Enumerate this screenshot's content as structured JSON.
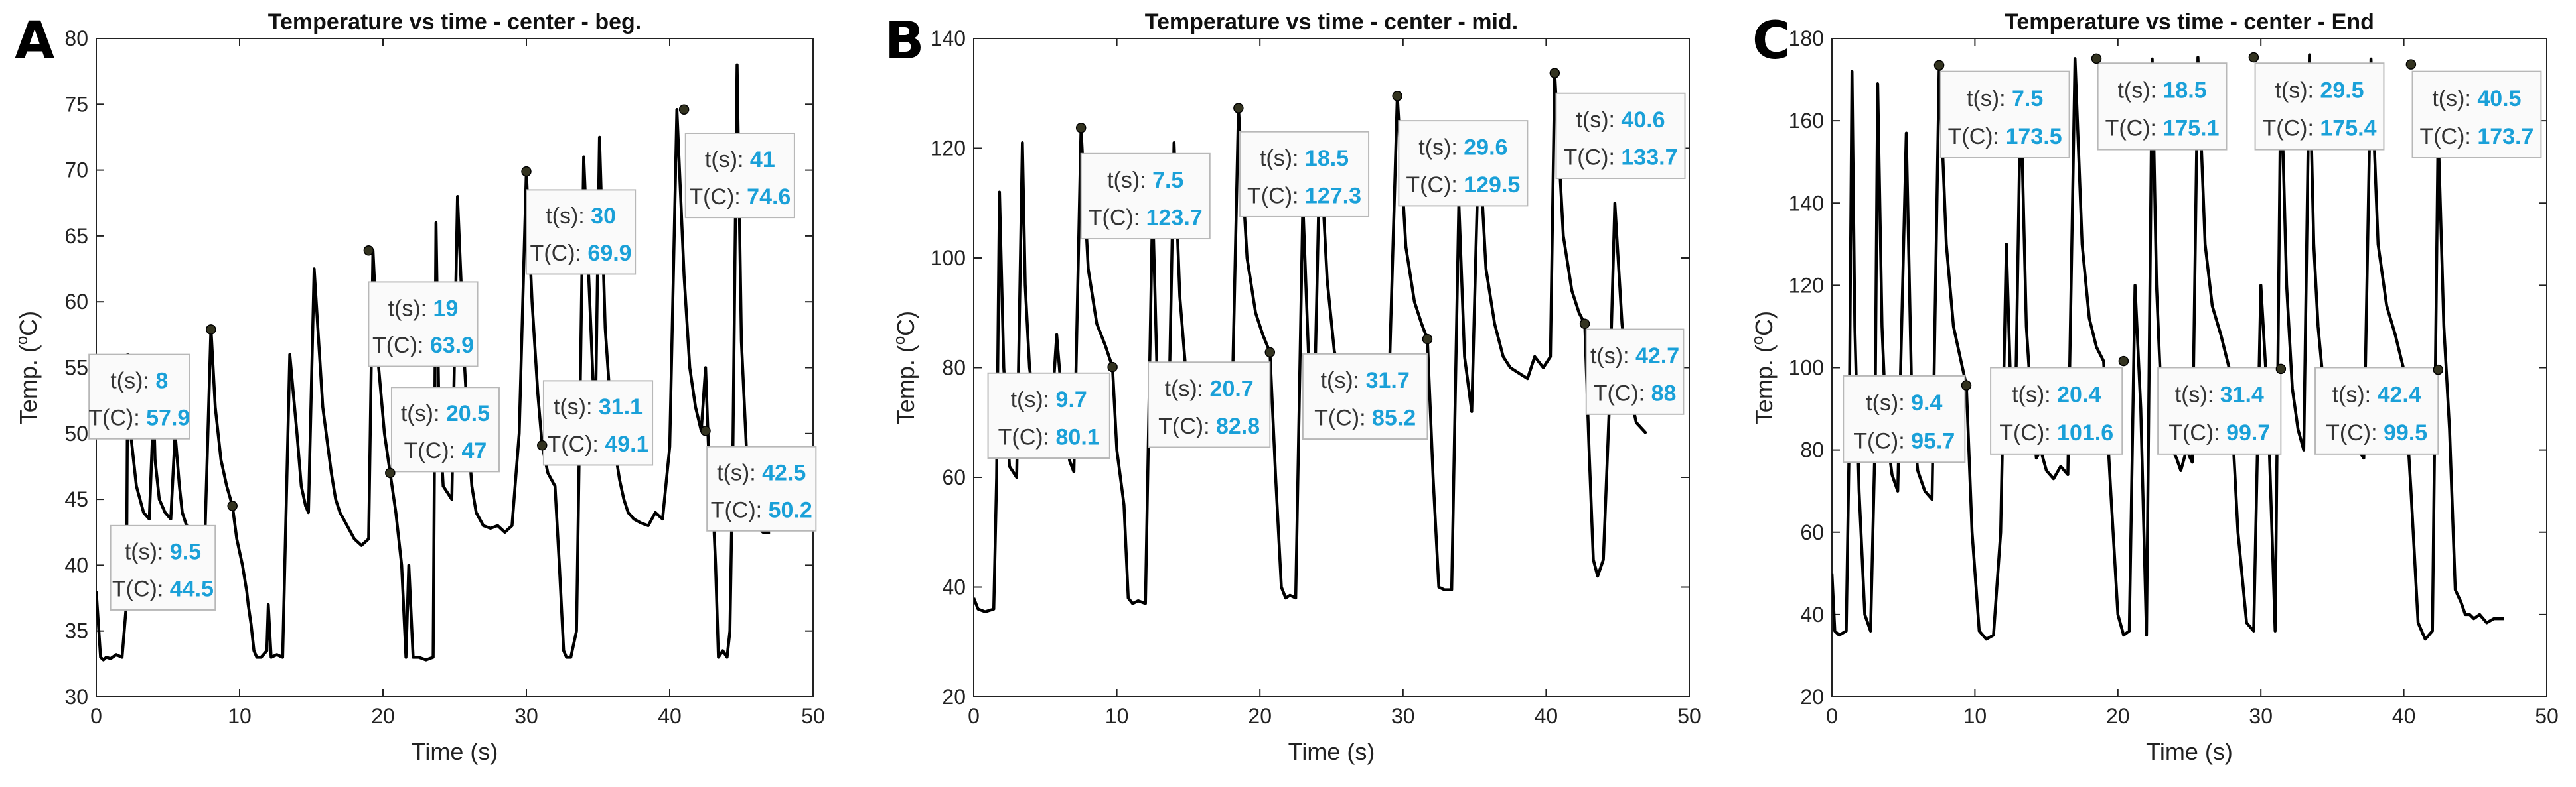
{
  "chart_data": [
    {
      "type": "line",
      "panel_label": "A",
      "title": "Temperature vs time - center - beg.",
      "xlabel": "Time (s)",
      "ylabel_main": "Temp. (",
      "ylabel_sup": "o",
      "ylabel_end": "C)",
      "xlim": [
        0,
        50
      ],
      "ylim": [
        30,
        80
      ],
      "xticks": [
        0,
        10,
        20,
        30,
        40,
        50
      ],
      "yticks": [
        30,
        35,
        40,
        45,
        50,
        55,
        60,
        65,
        70,
        75,
        80
      ],
      "series": [
        {
          "x": [
            0,
            0.3,
            0.5,
            0.7,
            1.0,
            1.4,
            1.8,
            2.1,
            2.2,
            2.4,
            2.8,
            3.3,
            3.7,
            4.0,
            4.1,
            4.4,
            4.8,
            5.2,
            5.5,
            5.8,
            6.0,
            6.3,
            6.7,
            7.2,
            7.6,
            8.0,
            8.3,
            8.7,
            9.1,
            9.5,
            9.8,
            10.2,
            10.5,
            10.6,
            10.8,
            11.0,
            11.2,
            11.5,
            11.9,
            12.0,
            12.2,
            12.6,
            13.0,
            13.5,
            14.0,
            14.3,
            14.6,
            14.8,
            15.2,
            15.8,
            16.4,
            16.7,
            17.0,
            17.5,
            18.0,
            18.5,
            19.0,
            19.3,
            19.7,
            20.1,
            20.5,
            20.9,
            21.3,
            21.6,
            21.8,
            22.1,
            22.5,
            23.0,
            23.5,
            23.7,
            23.9,
            24.2,
            24.8,
            25.2,
            25.7,
            26.0,
            26.2,
            26.5,
            27.0,
            27.5,
            28.0,
            28.5,
            29.0,
            29.5,
            30.0,
            30.4,
            30.8,
            31.1,
            31.5,
            32.0,
            32.3,
            32.6,
            32.8,
            33.1,
            33.5,
            34.0,
            34.5,
            34.8,
            35.1,
            35.5,
            36.0,
            36.5,
            36.8,
            37.1,
            37.5,
            38.0,
            38.5,
            39.0,
            39.5,
            40.0,
            40.5,
            41.0,
            41.4,
            41.8,
            42.2,
            42.5,
            42.7,
            43.0,
            43.2,
            43.4,
            43.7,
            44.0,
            44.2,
            44.4,
            44.7,
            45.0,
            45.3,
            45.5,
            45.8,
            46.1,
            46.5,
            47.0
          ],
          "y": [
            38,
            33,
            32.8,
            33,
            32.9,
            33.2,
            33,
            37,
            56,
            50,
            46,
            44,
            43.5,
            52,
            48,
            45,
            44,
            43.5,
            50,
            46,
            44,
            43,
            42.8,
            42.5,
            43,
            58,
            52,
            48,
            46,
            44.5,
            42,
            40,
            38,
            37,
            35.5,
            33.5,
            33,
            33,
            33.5,
            37,
            33,
            33.2,
            33,
            56,
            50,
            46,
            44.5,
            44,
            62.5,
            52,
            47,
            45,
            44,
            43,
            42,
            41.5,
            42,
            63.9,
            55,
            50,
            47,
            44,
            40,
            33,
            40,
            33,
            33,
            32.8,
            33,
            66,
            52,
            46,
            45,
            68,
            55,
            49,
            46,
            44,
            43,
            42.8,
            43,
            42.5,
            43,
            50,
            69.9,
            60,
            53,
            49.1,
            47,
            46,
            40,
            33.5,
            33,
            33,
            35,
            71,
            58,
            50,
            72.5,
            58,
            50,
            46.5,
            45,
            44,
            43.5,
            43.2,
            43,
            44,
            43.5,
            49,
            74.6,
            62,
            55,
            52,
            50.2,
            55,
            49,
            45,
            40,
            33,
            33.5,
            33,
            35,
            48,
            78,
            57,
            50,
            45,
            43.5,
            43,
            42.5,
            42.5
          ]
        }
      ],
      "annotations": [
        {
          "t": "8",
          "T": "57.9",
          "x": 8,
          "y": 57.9,
          "bx": -0.5,
          "by": 56,
          "bw": 7.0,
          "bh": 6.4
        },
        {
          "t": "9.5",
          "T": "44.5",
          "x": 9.5,
          "y": 44.5,
          "bx": 1.0,
          "by": 43,
          "bw": 7.3,
          "bh": 6.4
        },
        {
          "t": "19",
          "T": "63.9",
          "x": 19,
          "y": 63.9,
          "bx": 19.0,
          "by": 61.5,
          "bw": 7.6,
          "bh": 6.4
        },
        {
          "t": "20.5",
          "T": "47",
          "x": 20.5,
          "y": 47,
          "bx": 20.6,
          "by": 53.5,
          "bw": 7.5,
          "bh": 6.4
        },
        {
          "t": "30",
          "T": "69.9",
          "x": 30,
          "y": 69.9,
          "bx": 30.0,
          "by": 68.5,
          "bw": 7.6,
          "bh": 6.4
        },
        {
          "t": "31.1",
          "T": "49.1",
          "x": 31.1,
          "y": 49.1,
          "bx": 31.2,
          "by": 54.0,
          "bw": 7.6,
          "bh": 6.4
        },
        {
          "t": "41",
          "T": "74.6",
          "x": 41,
          "y": 74.6,
          "bx": 41.1,
          "by": 72.8,
          "bw": 7.6,
          "bh": 6.4
        },
        {
          "t": "42.5",
          "T": "50.2",
          "x": 42.5,
          "y": 50.2,
          "bx": 42.6,
          "by": 49.0,
          "bw": 7.6,
          "bh": 6.4
        }
      ]
    },
    {
      "type": "line",
      "panel_label": "B",
      "title": "Temperature vs time - center - mid.",
      "xlabel": "Time (s)",
      "ylabel_main": "Temp. (",
      "ylabel_sup": "o",
      "ylabel_end": "C)",
      "xlim": [
        0,
        50
      ],
      "ylim": [
        20,
        140
      ],
      "xticks": [
        0,
        10,
        20,
        30,
        40,
        50
      ],
      "yticks": [
        20,
        40,
        60,
        80,
        100,
        120,
        140
      ],
      "series": [
        {
          "x": [
            0,
            0.3,
            0.8,
            1.4,
            1.6,
            1.8,
            2.1,
            2.5,
            3.0,
            3.4,
            3.6,
            3.9,
            4.3,
            4.8,
            5.3,
            5.8,
            6.3,
            6.7,
            7.0,
            7.5,
            8.0,
            8.6,
            9.2,
            9.7,
            10.0,
            10.5,
            10.8,
            11.1,
            11.5,
            12.0,
            12.5,
            12.8,
            13.2,
            13.6,
            14.0,
            14.4,
            14.8,
            15.3,
            15.8,
            16.3,
            16.9,
            17.4,
            18.0,
            18.5,
            19.1,
            19.7,
            20.2,
            20.7,
            21.1,
            21.5,
            21.8,
            22.1,
            22.5,
            23.0,
            23.4,
            23.8,
            24.2,
            24.7,
            25.2,
            25.8,
            26.3,
            26.9,
            27.5,
            28.0,
            28.5,
            29.0,
            29.6,
            30.2,
            30.8,
            31.3,
            31.7,
            32.1,
            32.5,
            32.9,
            33.4,
            33.9,
            34.3,
            34.8,
            35.3,
            35.8,
            36.4,
            37.0,
            37.5,
            38.1,
            38.7,
            39.2,
            39.8,
            40.3,
            40.6,
            41.2,
            41.8,
            42.3,
            42.7,
            43.0,
            43.3,
            43.6,
            44.0,
            44.4,
            44.8,
            45.3,
            45.8,
            46.3,
            47.0
          ],
          "y": [
            38,
            36,
            35.5,
            36,
            60,
            112,
            80,
            62,
            60,
            121,
            95,
            80,
            72,
            67,
            66,
            86,
            70,
            63,
            61,
            123.7,
            98,
            88,
            84,
            80.1,
            65,
            55,
            38,
            37,
            37.5,
            37,
            110,
            80,
            66,
            67,
            121,
            93,
            80,
            72,
            70,
            69,
            68,
            69,
            67,
            127.3,
            100,
            90,
            86,
            82.8,
            60,
            40,
            38,
            38.5,
            38,
            110,
            82,
            72,
            121,
            96,
            83,
            77,
            74,
            73,
            77,
            75,
            74,
            75,
            129.5,
            102,
            92,
            88,
            85.2,
            60,
            40,
            39.5,
            39.5,
            110,
            82,
            72,
            122,
            98,
            88,
            82,
            80,
            79,
            78,
            82,
            80,
            82,
            133.7,
            104,
            94,
            90,
            88,
            65,
            45,
            42,
            45,
            72,
            110,
            88,
            76,
            70,
            68
          ]
        }
      ],
      "annotations": [
        {
          "t": "7.5",
          "T": "123.7",
          "x": 7.5,
          "y": 123.7,
          "bx": 7.5,
          "by": 119,
          "bw": 9.0,
          "bh": 15.5
        },
        {
          "t": "9.7",
          "T": "80.1",
          "x": 9.7,
          "y": 80.1,
          "bx": 1.0,
          "by": 79,
          "bw": 8.5,
          "bh": 15.5
        },
        {
          "t": "18.5",
          "T": "127.3",
          "x": 18.5,
          "y": 127.3,
          "bx": 18.6,
          "by": 123,
          "bw": 9.0,
          "bh": 15.5
        },
        {
          "t": "20.7",
          "T": "82.8",
          "x": 20.7,
          "y": 82.8,
          "bx": 12.2,
          "by": 81,
          "bw": 8.5,
          "bh": 15.5
        },
        {
          "t": "29.6",
          "T": "129.5",
          "x": 29.6,
          "y": 129.5,
          "bx": 29.7,
          "by": 125,
          "bw": 9.0,
          "bh": 15.5
        },
        {
          "t": "31.7",
          "T": "85.2",
          "x": 31.7,
          "y": 85.2,
          "bx": 23.0,
          "by": 82.5,
          "bw": 8.7,
          "bh": 15.5
        },
        {
          "t": "40.6",
          "T": "133.7",
          "x": 40.6,
          "y": 133.7,
          "bx": 40.7,
          "by": 130,
          "bw": 9.0,
          "bh": 15.5
        },
        {
          "t": "42.7",
          "T": "88",
          "x": 42.7,
          "y": 88,
          "bx": 42.8,
          "by": 87,
          "bw": 6.8,
          "bh": 15.5
        }
      ]
    },
    {
      "type": "line",
      "panel_label": "C",
      "title": "Temperature vs time - center - End",
      "xlabel": "Time (s)",
      "ylabel_main": "Temp. (",
      "ylabel_sup": "o",
      "ylabel_end": "C)",
      "xlim": [
        0,
        50
      ],
      "ylim": [
        20,
        180
      ],
      "xticks": [
        0,
        10,
        20,
        30,
        40,
        50
      ],
      "yticks": [
        20,
        40,
        60,
        80,
        100,
        120,
        140,
        160,
        180
      ],
      "series": [
        {
          "x": [
            0,
            0.2,
            0.5,
            1.0,
            1.2,
            1.4,
            1.6,
            1.9,
            2.3,
            2.7,
            3.0,
            3.2,
            3.5,
            3.8,
            4.2,
            4.6,
            5.2,
            5.6,
            6.0,
            6.5,
            7.0,
            7.5,
            8.0,
            8.5,
            9.0,
            9.4,
            9.8,
            10.3,
            10.8,
            11.3,
            11.8,
            12.2,
            12.5,
            12.8,
            13.2,
            13.6,
            14.0,
            14.3,
            14.6,
            15.0,
            15.5,
            16.0,
            16.5,
            17.0,
            17.5,
            18.0,
            18.5,
            19.0,
            19.5,
            20.0,
            20.4,
            20.8,
            21.2,
            21.6,
            22.0,
            22.4,
            22.7,
            23.0,
            23.4,
            23.8,
            24.1,
            24.4,
            24.8,
            25.2,
            25.6,
            26.1,
            26.6,
            27.2,
            27.8,
            28.4,
            29.0,
            29.5,
            30.0,
            30.5,
            31.0,
            31.4,
            31.8,
            32.2,
            32.6,
            33.0,
            33.4,
            33.7,
            34.0,
            34.4,
            34.8,
            35.2,
            35.6,
            36.0,
            36.4,
            36.8,
            37.2,
            37.7,
            38.2,
            38.8,
            39.4,
            40.0,
            40.5,
            41.0,
            41.5,
            42.0,
            42.4,
            42.8,
            43.2,
            43.6,
            44.0,
            44.3,
            44.6,
            44.9,
            45.3,
            45.8,
            46.3,
            47.0
          ],
          "y": [
            50,
            36,
            35,
            36,
            80,
            172,
            110,
            70,
            40,
            36,
            80,
            169,
            110,
            85,
            74,
            70,
            157,
            90,
            75,
            70,
            68,
            173.5,
            130,
            110,
            102,
            95.7,
            60,
            36,
            34,
            35,
            60,
            130,
            95,
            82,
            167,
            110,
            88,
            78,
            80,
            75,
            73,
            76,
            74,
            175.1,
            130,
            112,
            105,
            101.6,
            70,
            40,
            35,
            36,
            120,
            90,
            35,
            175,
            120,
            95,
            85,
            80,
            78,
            75,
            80,
            77,
            175.4,
            130,
            115,
            108,
            99.7,
            60,
            38,
            36,
            120,
            90,
            36,
            172,
            120,
            95,
            85,
            80,
            176,
            130,
            110,
            95,
            88,
            84,
            82,
            80,
            83,
            80,
            78,
            175,
            130,
            115,
            108,
            99.5,
            70,
            38,
            34,
            36,
            158,
            110,
            85,
            46,
            43,
            40,
            40,
            39,
            40,
            38,
            39,
            39
          ]
        }
      ],
      "annotations": [
        {
          "t": "7.5",
          "T": "173.5",
          "x": 7.5,
          "y": 173.5,
          "bx": 7.6,
          "by": 172,
          "bw": 9.0,
          "bh": 21
        },
        {
          "t": "9.4",
          "T": "95.7",
          "x": 9.4,
          "y": 95.7,
          "bx": 0.8,
          "by": 98,
          "bw": 8.5,
          "bh": 21
        },
        {
          "t": "18.5",
          "T": "175.1",
          "x": 18.5,
          "y": 175.1,
          "bx": 18.6,
          "by": 174,
          "bw": 9.0,
          "bh": 21
        },
        {
          "t": "20.4",
          "T": "101.6",
          "x": 20.4,
          "y": 101.6,
          "bx": 11.1,
          "by": 100,
          "bw": 9.2,
          "bh": 21
        },
        {
          "t": "29.5",
          "T": "175.4",
          "x": 29.5,
          "y": 175.4,
          "bx": 29.6,
          "by": 174,
          "bw": 9.0,
          "bh": 21
        },
        {
          "t": "31.4",
          "T": "99.7",
          "x": 31.4,
          "y": 99.7,
          "bx": 22.8,
          "by": 100,
          "bw": 8.6,
          "bh": 21
        },
        {
          "t": "40.5",
          "T": "173.7",
          "x": 40.5,
          "y": 173.7,
          "bx": 40.6,
          "by": 172,
          "bw": 9.0,
          "bh": 21
        },
        {
          "t": "42.4",
          "T": "99.5",
          "x": 42.4,
          "y": 99.5,
          "bx": 33.8,
          "by": 100,
          "bw": 8.6,
          "bh": 21
        }
      ]
    }
  ],
  "labels": {
    "t_key": "t(s): ",
    "T_key": "T(C): "
  },
  "style": {
    "line_color": "#000000",
    "value_color": "#1aa0d8",
    "marker_color": "#333320"
  }
}
